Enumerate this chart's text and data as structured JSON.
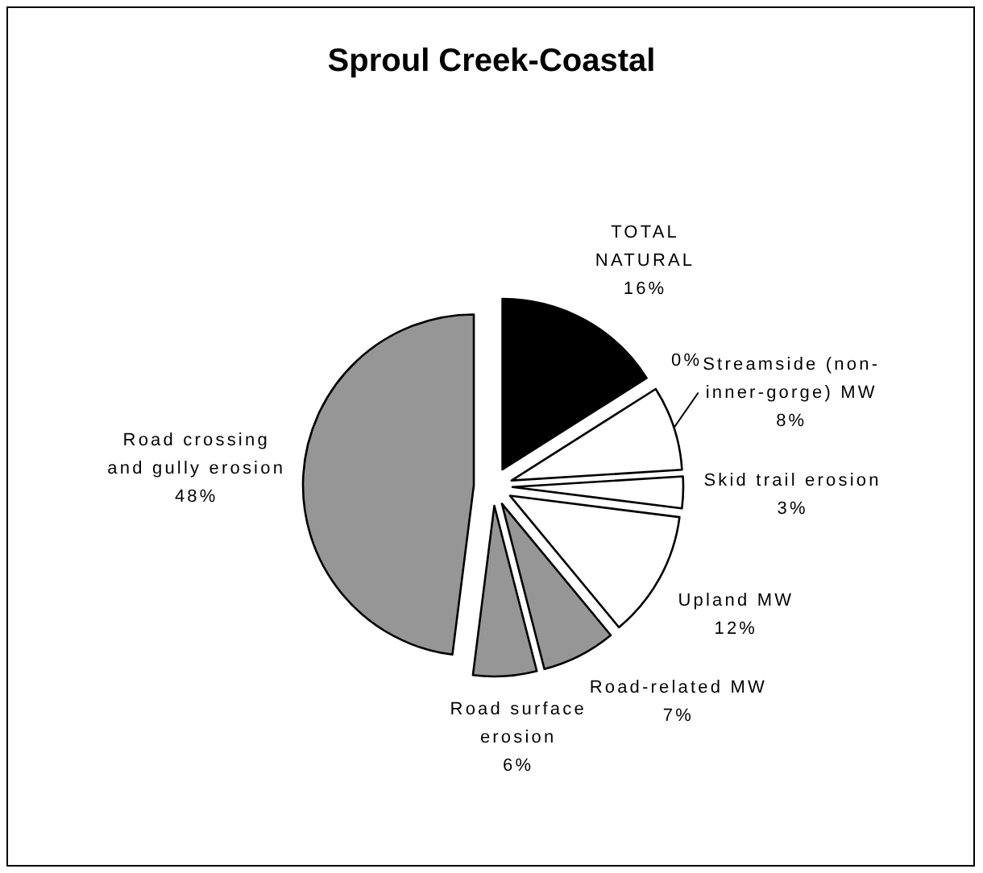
{
  "chart_data": {
    "type": "pie",
    "title": "Sproul Creek-Coastal",
    "categories": [
      "TOTAL\nNATURAL",
      null,
      "Streamside (non-\ninner-gorge) MW",
      "Skid trail erosion",
      "Upland MW",
      "Road-related MW",
      "Road surface\nerosion",
      "Road crossing\nand gully erosion"
    ],
    "values": [
      16,
      0,
      8,
      3,
      12,
      7,
      6,
      48
    ],
    "colors": [
      "#000000",
      "#ffffff",
      "#ffffff",
      "#ffffff",
      "#ffffff",
      "#969696",
      "#969696",
      "#969696"
    ],
    "value_labels": [
      "16%",
      "0%",
      "8%",
      "3%",
      "12%",
      "7%",
      "6%",
      "48%"
    ]
  }
}
